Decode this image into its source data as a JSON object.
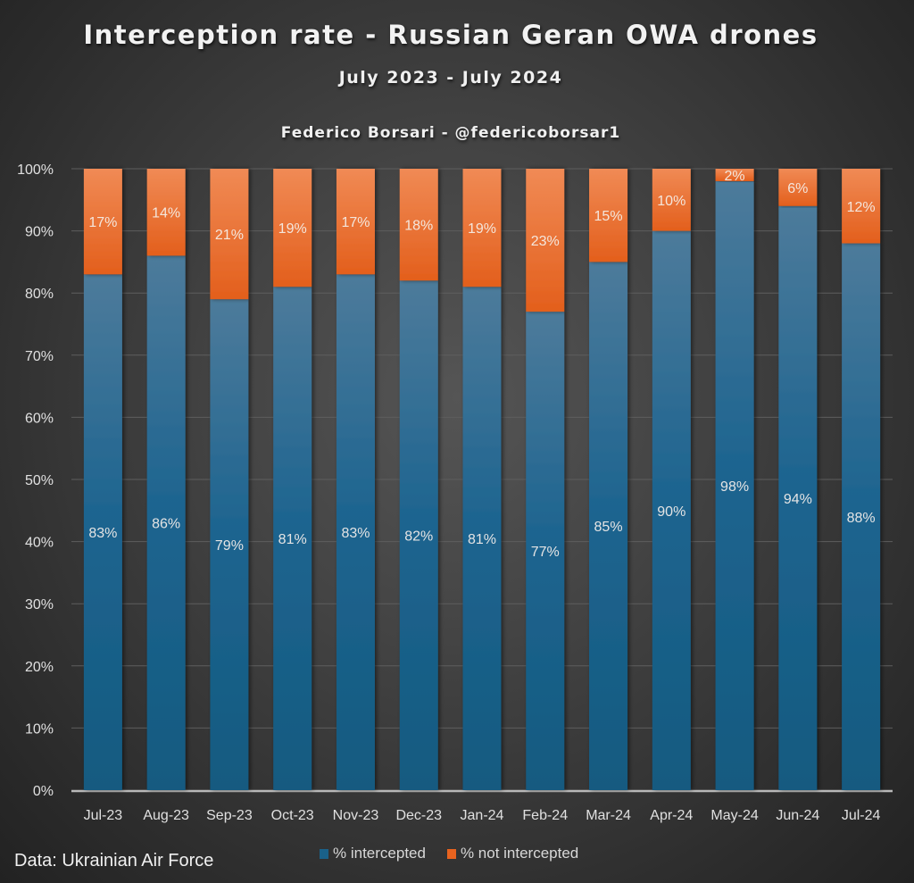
{
  "header": {
    "title": "Interception rate - Russian Geran OWA drones",
    "subtitle": "July 2023 - July 2024",
    "author": "Federico Borsari - @federicoborsar1"
  },
  "footer": {
    "source": "Data: Ukrainian Air Force"
  },
  "colors": {
    "intercepted": "#1a6189",
    "intercepted_top": "#4a7a9a",
    "not_intercepted": "#e8631f",
    "not_intercepted_top": "#f08a55",
    "gridline": "#5e5e5e",
    "axis": "#b8b8b8",
    "text": "#e8e8e8"
  },
  "chart_data": {
    "type": "bar",
    "stacked": true,
    "title": "Interception rate - Russian Geran OWA drones",
    "subtitle": "July 2023 - July 2024",
    "xlabel": "",
    "ylabel": "",
    "ylim": [
      0,
      100
    ],
    "yticks": [
      "0%",
      "10%",
      "20%",
      "30%",
      "40%",
      "50%",
      "60%",
      "70%",
      "80%",
      "90%",
      "100%"
    ],
    "grid": true,
    "legend_position": "bottom",
    "categories": [
      "Jul-23",
      "Aug-23",
      "Sep-23",
      "Oct-23",
      "Nov-23",
      "Dec-23",
      "Jan-24",
      "Feb-24",
      "Mar-24",
      "Apr-24",
      "May-24",
      "Jun-24",
      "Jul-24"
    ],
    "series": [
      {
        "name": "% intercepted",
        "values": [
          83,
          86,
          79,
          81,
          83,
          82,
          81,
          77,
          85,
          90,
          98,
          94,
          88
        ],
        "labels": [
          "83%",
          "86%",
          "79%",
          "81%",
          "83%",
          "82%",
          "81%",
          "77%",
          "85%",
          "90%",
          "98%",
          "94%",
          "88%"
        ]
      },
      {
        "name": "% not intercepted",
        "values": [
          17,
          14,
          21,
          19,
          17,
          18,
          19,
          23,
          15,
          10,
          2,
          6,
          12
        ],
        "labels": [
          "17%",
          "14%",
          "21%",
          "19%",
          "17%",
          "18%",
          "19%",
          "23%",
          "15%",
          "10%",
          "2%",
          "6%",
          "12%"
        ]
      }
    ]
  }
}
